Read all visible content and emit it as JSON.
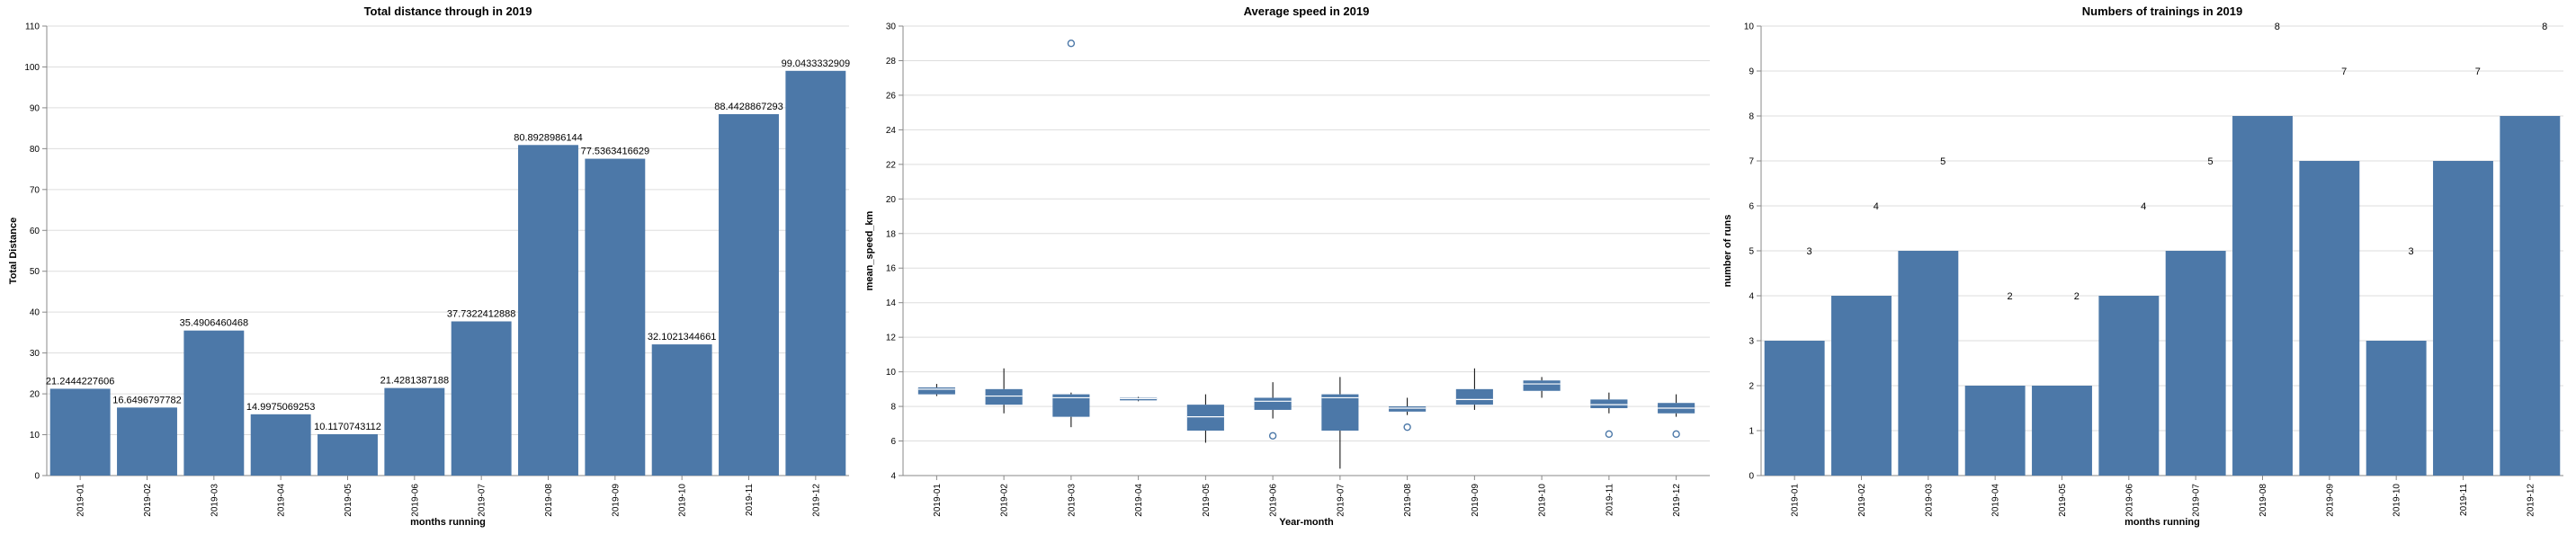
{
  "colors": {
    "bar": "#4c78a8",
    "grid": "#dddddd",
    "axis": "#888888",
    "median": "#ffffff"
  },
  "chart_data": [
    {
      "type": "bar",
      "title": "Total distance through in 2019",
      "xlabel": "months running",
      "ylabel": "Total Distance",
      "ylim": [
        0,
        110
      ],
      "yticks": [
        0,
        10,
        20,
        30,
        40,
        50,
        60,
        70,
        80,
        90,
        100,
        110
      ],
      "grid": true,
      "categories": [
        "2019-01",
        "2019-02",
        "2019-03",
        "2019-04",
        "2019-05",
        "2019-06",
        "2019-07",
        "2019-08",
        "2019-09",
        "2019-10",
        "2019-11",
        "2019-12"
      ],
      "values": [
        21.2444227606,
        16.6496797782,
        35.4906460468,
        14.9975069253,
        10.1170743112,
        21.4281387188,
        37.7322412888,
        80.8928986144,
        77.5363416629,
        32.1021344661,
        88.4428867293,
        99.0433332909
      ],
      "labels": [
        "21.2444227606",
        "16.6496797782",
        "35.4906460468",
        "14.9975069253",
        "10.1170743112",
        "21.4281387188",
        "37.7322412888",
        "80.8928986144",
        "77.5363416629",
        "32.1021344661",
        "88.4428867293",
        "99.0433332909"
      ]
    },
    {
      "type": "box",
      "title": "Average speed in 2019",
      "xlabel": "Year-month",
      "ylabel": "mean_speed_km",
      "ylim": [
        4,
        30
      ],
      "yticks": [
        4,
        6,
        8,
        10,
        12,
        14,
        16,
        18,
        20,
        22,
        24,
        26,
        28,
        30
      ],
      "grid": true,
      "categories": [
        "2019-01",
        "2019-02",
        "2019-03",
        "2019-04",
        "2019-05",
        "2019-06",
        "2019-07",
        "2019-08",
        "2019-09",
        "2019-10",
        "2019-11",
        "2019-12"
      ],
      "boxes": [
        {
          "min": 8.6,
          "q1": 8.7,
          "median": 9.0,
          "q3": 9.1,
          "max": 9.3,
          "outliers": []
        },
        {
          "min": 7.6,
          "q1": 8.1,
          "median": 8.6,
          "q3": 9.0,
          "max": 10.2,
          "outliers": []
        },
        {
          "min": 6.8,
          "q1": 7.4,
          "median": 8.5,
          "q3": 8.7,
          "max": 8.8,
          "outliers": [
            29.0
          ]
        },
        {
          "min": 8.3,
          "q1": 8.35,
          "median": 8.45,
          "q3": 8.5,
          "max": 8.55,
          "outliers": []
        },
        {
          "min": 5.9,
          "q1": 6.6,
          "median": 7.4,
          "q3": 8.1,
          "max": 8.7,
          "outliers": []
        },
        {
          "min": 7.3,
          "q1": 7.8,
          "median": 8.3,
          "q3": 8.5,
          "max": 9.4,
          "outliers": [
            6.3
          ]
        },
        {
          "min": 4.4,
          "q1": 6.6,
          "median": 8.5,
          "q3": 8.7,
          "max": 9.7,
          "outliers": []
        },
        {
          "min": 7.5,
          "q1": 7.7,
          "median": 7.9,
          "q3": 8.0,
          "max": 8.5,
          "outliers": [
            6.8
          ]
        },
        {
          "min": 7.8,
          "q1": 8.1,
          "median": 8.4,
          "q3": 9.0,
          "max": 10.2,
          "outliers": []
        },
        {
          "min": 8.5,
          "q1": 8.9,
          "median": 9.3,
          "q3": 9.5,
          "max": 9.7,
          "outliers": []
        },
        {
          "min": 7.6,
          "q1": 7.9,
          "median": 8.1,
          "q3": 8.4,
          "max": 8.8,
          "outliers": [
            6.4
          ]
        },
        {
          "min": 7.4,
          "q1": 7.6,
          "median": 7.9,
          "q3": 8.2,
          "max": 8.7,
          "outliers": [
            6.4
          ]
        }
      ]
    },
    {
      "type": "bar",
      "title": "Numbers of trainings in 2019",
      "xlabel": "months running",
      "ylabel": "number of runs",
      "ylim": [
        0,
        10
      ],
      "yticks": [
        0,
        1,
        2,
        3,
        4,
        5,
        6,
        7,
        8,
        9,
        10
      ],
      "grid": true,
      "categories": [
        "2019-01",
        "2019-02",
        "2019-03",
        "2019-04",
        "2019-05",
        "2019-06",
        "2019-07",
        "2019-08",
        "2019-09",
        "2019-10",
        "2019-11",
        "2019-12"
      ],
      "values": [
        3,
        4,
        5,
        2,
        2,
        4,
        5,
        8,
        7,
        3,
        7,
        8
      ],
      "labels": [
        "3",
        "4",
        "5",
        "2",
        "2",
        "4",
        "5",
        "8",
        "7",
        "3",
        "7",
        "8"
      ]
    }
  ]
}
